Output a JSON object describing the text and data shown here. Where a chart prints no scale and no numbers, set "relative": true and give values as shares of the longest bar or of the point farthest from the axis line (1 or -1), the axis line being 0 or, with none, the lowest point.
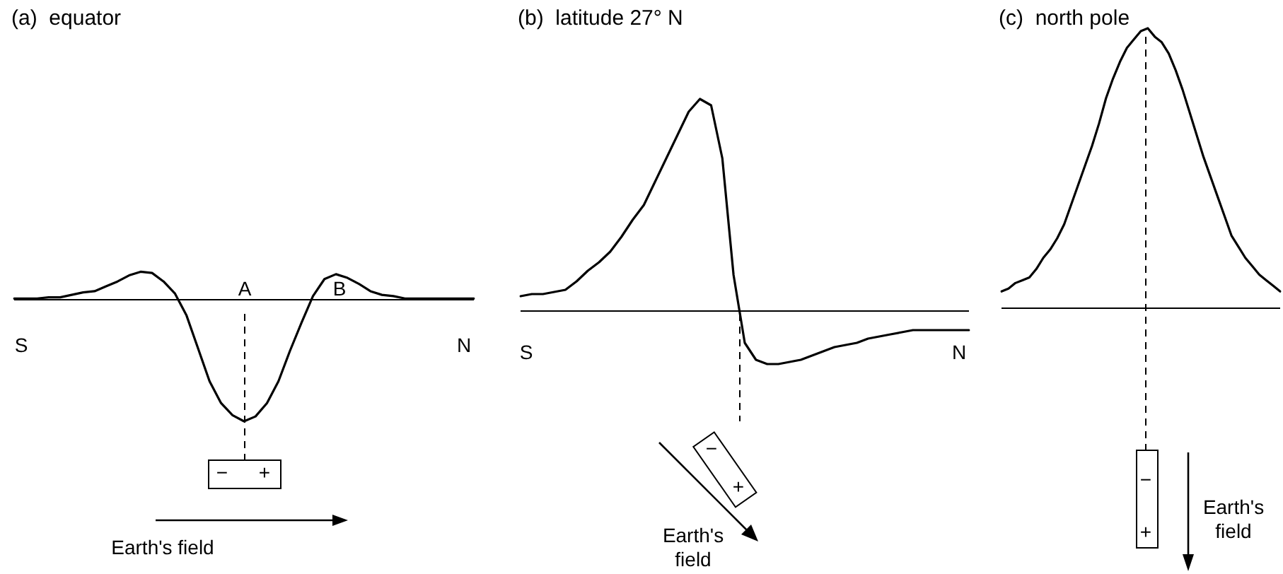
{
  "chart_data": [
    {
      "type": "line",
      "title": "(a)  equator",
      "relative": true,
      "legend": false,
      "marker": "none",
      "line_style": "solid",
      "categories": [
        null,
        null,
        null,
        null,
        null,
        null,
        null,
        null,
        null,
        null,
        null,
        null,
        null,
        null,
        null,
        null,
        null,
        null,
        null,
        null,
        null,
        null,
        null,
        null,
        null,
        null,
        null,
        null,
        null,
        null,
        null,
        null,
        null,
        null,
        null,
        null,
        null,
        null,
        null,
        null,
        null
      ],
      "series": [
        {
          "color": "#000000",
          "values": [
            0.01,
            0.01,
            0.01,
            0.02,
            0.02,
            0.04,
            0.06,
            0.07,
            0.11,
            0.15,
            0.2,
            0.23,
            0.22,
            0.15,
            0.05,
            -0.13,
            -0.4,
            -0.67,
            -0.85,
            -0.95,
            -1,
            -0.96,
            -0.85,
            -0.67,
            -0.42,
            -0.19,
            0.03,
            0.17,
            0.21,
            0.18,
            0.13,
            0.07,
            0.04,
            0.03,
            0.01,
            0.01,
            0.01,
            0.01,
            0.01,
            0.01,
            0.01
          ]
        }
      ],
      "annotations": [
        "A",
        "B",
        "S",
        "N",
        "−",
        "+",
        "Earth's field"
      ]
    },
    {
      "type": "line",
      "title": "(b)  latitude 27° N",
      "relative": true,
      "legend": false,
      "marker": "none",
      "line_style": "solid",
      "categories": [
        null,
        null,
        null,
        null,
        null,
        null,
        null,
        null,
        null,
        null,
        null,
        null,
        null,
        null,
        null,
        null,
        null,
        null,
        null,
        null,
        null,
        null,
        null,
        null,
        null,
        null,
        null,
        null,
        null,
        null,
        null,
        null,
        null,
        null,
        null,
        null,
        null,
        null,
        null,
        null,
        null
      ],
      "series": [
        {
          "color": "#000000",
          "values": [
            0.07,
            0.08,
            0.08,
            0.09,
            0.1,
            0.14,
            0.19,
            0.23,
            0.28,
            0.35,
            0.43,
            0.5,
            0.61,
            0.72,
            0.83,
            0.94,
            1,
            0.97,
            0.72,
            0.17,
            -0.15,
            -0.23,
            -0.25,
            -0.25,
            -0.24,
            -0.23,
            -0.21,
            -0.19,
            -0.17,
            -0.16,
            -0.15,
            -0.13,
            -0.12,
            -0.11,
            -0.1,
            -0.09,
            -0.09,
            -0.09,
            -0.09,
            -0.09,
            -0.09
          ]
        }
      ],
      "annotations": [
        "S",
        "N",
        "−",
        "+",
        "Earth's field"
      ]
    },
    {
      "type": "line",
      "title": "(c)  north pole",
      "relative": true,
      "legend": false,
      "marker": "none",
      "line_style": "solid",
      "categories": [
        null,
        null,
        null,
        null,
        null,
        null,
        null,
        null,
        null,
        null,
        null,
        null,
        null,
        null,
        null,
        null,
        null,
        null,
        null,
        null,
        null,
        null,
        null,
        null,
        null,
        null,
        null,
        null,
        null,
        null,
        null,
        null,
        null,
        null,
        null,
        null,
        null,
        null,
        null,
        null,
        null
      ],
      "series": [
        {
          "color": "#000000",
          "values": [
            0.06,
            0.07,
            0.09,
            0.1,
            0.11,
            0.14,
            0.18,
            0.21,
            0.25,
            0.3,
            0.37,
            0.44,
            0.51,
            0.58,
            0.66,
            0.75,
            0.82,
            0.88,
            0.93,
            0.96,
            0.99,
            1,
            0.97,
            0.95,
            0.91,
            0.85,
            0.78,
            0.7,
            0.62,
            0.54,
            0.47,
            0.4,
            0.33,
            0.26,
            0.22,
            0.18,
            0.15,
            0.12,
            0.1,
            0.08,
            0.06
          ]
        }
      ],
      "annotations": [
        "−",
        "+",
        "Earth's field"
      ]
    }
  ]
}
